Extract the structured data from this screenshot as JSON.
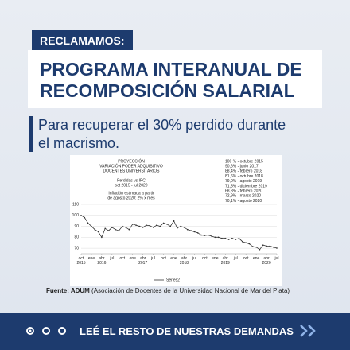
{
  "header": {
    "tag": "RECLAMAMOS:",
    "title_lines": [
      "PROGRAMA INTERANUAL DE",
      "RECOMPOSICIÓN SALARIAL"
    ]
  },
  "subtitle_lines": [
    "Para recuperar el 30% perdido durante",
    "el macrismo."
  ],
  "chart_data": {
    "type": "line",
    "title_lines": [
      "PROYECCIÓN",
      "VARIACIÓN PODER ADQUISITIVO",
      "DOCENTES UNIVERSITARIOS"
    ],
    "notes": [
      "Perdidas vs IPC",
      "oct 2015 - jul 2020",
      "Inflación estimada a partir",
      "de agosto 2020: 2% x mes"
    ],
    "annotations": [
      "100 % - octubre 2015",
      "90,6% - junio 2017",
      "88,4% - febrero 2018",
      "81,6% - octubre 2018",
      "79,0% - agosto 2019",
      "71,5% - diciembre 2019",
      "68,8% - febrero 2020",
      "72,9% - marzo 2020",
      "70,1% - agosto 2020"
    ],
    "categories": [
      "oct 2015",
      null,
      null,
      "ene",
      null,
      null,
      "abr 2016",
      null,
      null,
      "jul",
      null,
      null,
      "oct",
      null,
      null,
      "ene",
      null,
      null,
      "abr 2017",
      null,
      null,
      "jul",
      null,
      null,
      "oct",
      null,
      null,
      "ene",
      null,
      null,
      "abr 2018",
      null,
      null,
      "jul",
      null,
      null,
      "oct",
      null,
      null,
      "ene",
      null,
      null,
      "abr 2019",
      null,
      null,
      "jul",
      null,
      null,
      "oct",
      null,
      null,
      "ene",
      null,
      null,
      "abr 2020",
      null,
      null,
      "jul"
    ],
    "series": [
      {
        "name": "Series2",
        "color": "#333333",
        "values": [
          100,
          98,
          93,
          90,
          87,
          85,
          80,
          88,
          86,
          89,
          87,
          86,
          90,
          89,
          87,
          92,
          91,
          90,
          89,
          91,
          90.6,
          89,
          91,
          90,
          93,
          92,
          90,
          95,
          88.4,
          90,
          89,
          87,
          86,
          85,
          84,
          82,
          81.6,
          82,
          81,
          80,
          80,
          79,
          79,
          78,
          79,
          78,
          79,
          76,
          75,
          74,
          71.5,
          71,
          68.8,
          72.9,
          72,
          72,
          71,
          70.1
        ]
      }
    ],
    "ylim": [
      65,
      110
    ],
    "yticks": [
      70,
      80,
      90,
      100,
      110
    ],
    "grid": true
  },
  "source": {
    "label": "Fuente: ADUM",
    "text": "(Asociación de Docentes de la Universidad Nacional de Mar del Plata)"
  },
  "footer": {
    "cta": "LEÉ EL RESTO DE NUESTRAS DEMANDAS"
  }
}
